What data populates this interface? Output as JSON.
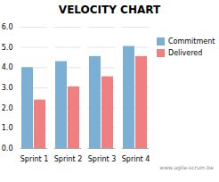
{
  "chart_data": {
    "type": "bar",
    "title": "VELOCITY CHART",
    "categories": [
      "Sprint 1",
      "Sprint 2",
      "Sprint 3",
      "Sprint 4"
    ],
    "series": [
      {
        "name": "Commitment",
        "color": "#7BAFD4",
        "values": [
          4.0,
          4.3,
          4.55,
          5.05
        ]
      },
      {
        "name": "Delivered",
        "color": "#F08080",
        "values": [
          2.4,
          3.05,
          3.55,
          4.55
        ]
      }
    ],
    "ylim": [
      0,
      6
    ],
    "yticks": [
      0,
      1,
      2,
      3,
      4,
      5,
      6
    ],
    "grid": true,
    "legend": "right",
    "annotations": [
      "www.agile-scrum.be"
    ]
  }
}
